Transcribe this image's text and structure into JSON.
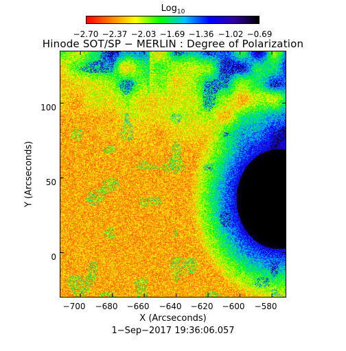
{
  "colorbar": {
    "title": "Log",
    "title_sub": "10",
    "ticks": [
      "−2.70",
      "−2.37",
      "−2.03",
      "−1.69",
      "−1.36",
      "−1.02",
      "−0.69"
    ],
    "range": [
      -2.7,
      -0.69
    ],
    "colors": [
      "#ff0000",
      "#ff8000",
      "#ffff00",
      "#00ff00",
      "#00c0ff",
      "#0000ff",
      "#3000a0",
      "#000000"
    ]
  },
  "plot": {
    "title": "Hinode SOT/SP − MERLIN : Degree of Polarization",
    "xlabel": "X (Arcseconds)",
    "ylabel": "Y (Arcseconds)",
    "xlim": [
      -713,
      -571
    ],
    "ylim": [
      -30,
      135
    ],
    "xticks": [
      "−700",
      "−680",
      "−660",
      "−640",
      "−620",
      "−600",
      "−580"
    ],
    "xtick_values": [
      -700,
      -680,
      -660,
      -640,
      -620,
      -600,
      -580
    ],
    "yticks": [
      "0",
      "50",
      "100"
    ],
    "ytick_values": [
      0,
      50,
      100
    ]
  },
  "timestamp": "1−Sep−2017 19:36:06.057"
}
